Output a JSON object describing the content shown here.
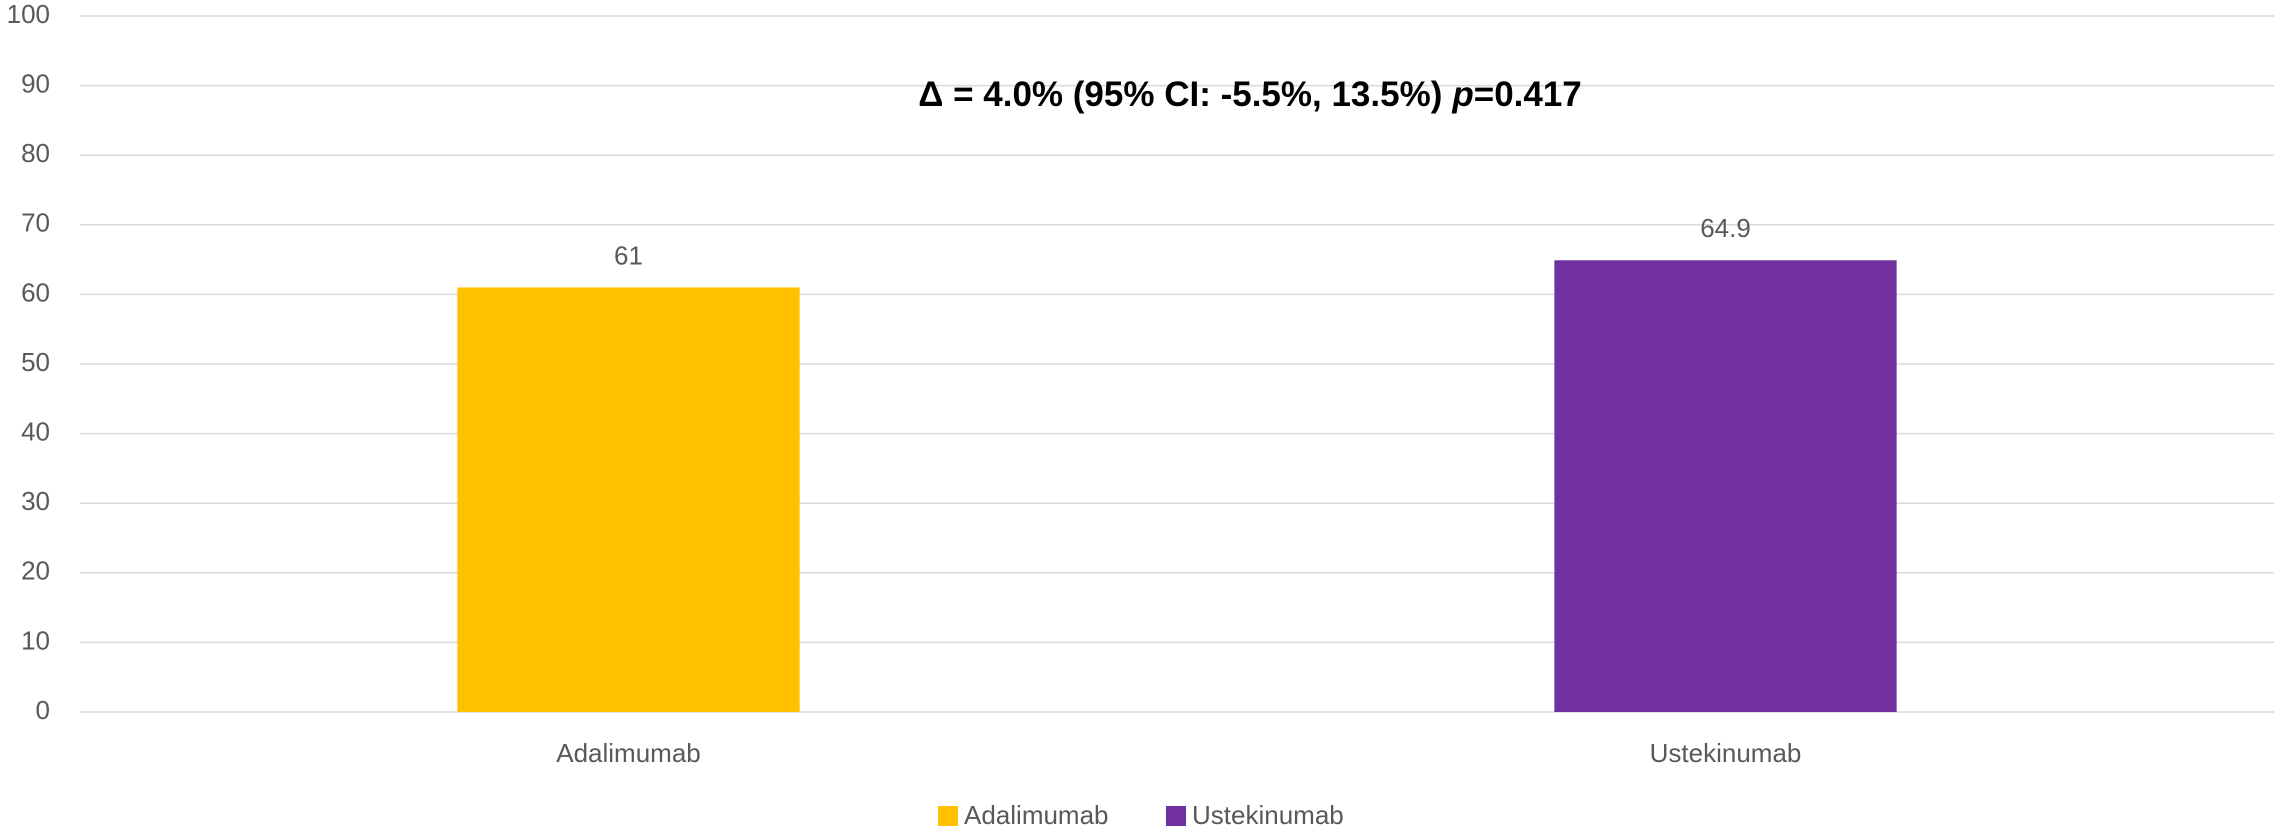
{
  "chart_data": {
    "type": "bar",
    "annotation": [
      "Δ = 4.0% (95% CI: -5.5%, 13.5%)",
      "p",
      "=0.417"
    ],
    "categories": [
      "Adalimumab",
      "Ustekinumab"
    ],
    "values": [
      61,
      64.9
    ],
    "colors": [
      "#ffc000",
      "#7030a0"
    ],
    "ylim": [
      0,
      100
    ],
    "yticks": [
      0,
      10,
      20,
      30,
      40,
      50,
      60,
      70,
      80,
      90,
      100
    ],
    "grid": true,
    "legend": "bottom"
  }
}
